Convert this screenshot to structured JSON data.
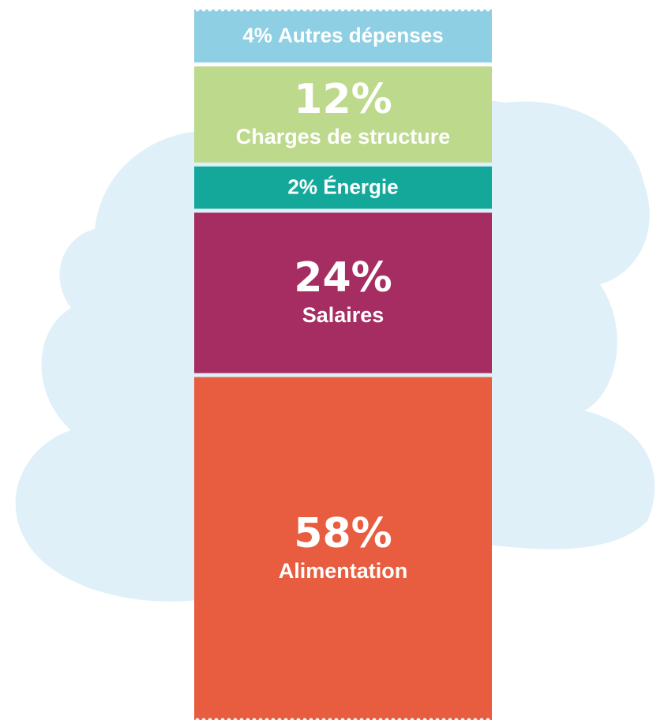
{
  "chart_data": {
    "type": "stacked-bar",
    "series": [
      {
        "name": "Alimentation",
        "color": "#e85d40",
        "values": [
          58
        ],
        "value_labels": [
          "58%"
        ]
      },
      {
        "name": "Salaires",
        "color": "#a52d62",
        "values": [
          24
        ],
        "value_labels": [
          "24%"
        ]
      },
      {
        "name": "Énergie",
        "color": "#14a89a",
        "values": [
          2
        ],
        "value_labels": [
          "2%"
        ]
      },
      {
        "name": "Charges de structure",
        "color": "#bcd98c",
        "values": [
          12
        ],
        "value_labels": [
          "12%"
        ]
      },
      {
        "name": "Autres dépenses",
        "color": "#8fcfe3",
        "values": [
          4
        ],
        "value_labels": [
          "4%"
        ]
      }
    ]
  }
}
